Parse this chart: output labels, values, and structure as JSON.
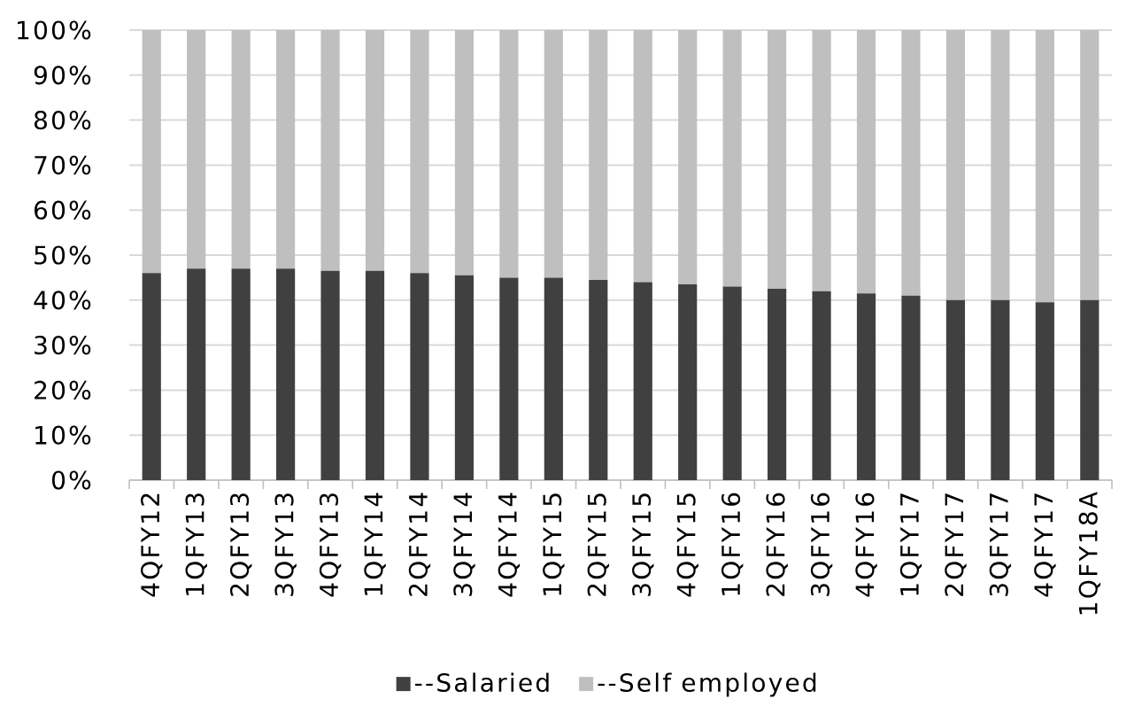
{
  "chart_data": {
    "type": "bar",
    "stacked": true,
    "categories": [
      "4QFY12",
      "1QFY13",
      "2QFY13",
      "3QFY13",
      "4QFY13",
      "1QFY14",
      "2QFY14",
      "3QFY14",
      "4QFY14",
      "1QFY15",
      "2QFY15",
      "3QFY15",
      "4QFY15",
      "1QFY16",
      "2QFY16",
      "3QFY16",
      "4QFY16",
      "1QFY17",
      "2QFY17",
      "3QFY17",
      "4QFY17",
      "1QFY18A"
    ],
    "series": [
      {
        "name": "--Salaried",
        "color": "#404040",
        "values": [
          46,
          47,
          47,
          47,
          46.5,
          46.5,
          46,
          45.5,
          45,
          45,
          44.5,
          44,
          43.5,
          43,
          42.5,
          42,
          41.5,
          41,
          40,
          40,
          39.5,
          40
        ]
      },
      {
        "name": "--Self employed",
        "color": "#bfbfbf",
        "values": [
          54,
          53,
          53,
          53,
          53.5,
          53.5,
          54,
          54.5,
          55,
          55,
          55.5,
          56,
          56.5,
          57,
          57.5,
          58,
          58.5,
          59,
          60,
          60,
          60.5,
          60
        ]
      }
    ],
    "ylim": [
      0,
      100
    ],
    "yticks": [
      {
        "value": 0,
        "label": "0%"
      },
      {
        "value": 10,
        "label": "10%"
      },
      {
        "value": 20,
        "label": "20%"
      },
      {
        "value": 30,
        "label": "30%"
      },
      {
        "value": 40,
        "label": "40%"
      },
      {
        "value": 50,
        "label": "50%"
      },
      {
        "value": 60,
        "label": "60%"
      },
      {
        "value": 70,
        "label": "70%"
      },
      {
        "value": 80,
        "label": "80%"
      },
      {
        "value": 90,
        "label": "90%"
      },
      {
        "value": 100,
        "label": "100%"
      }
    ],
    "grid": "y",
    "legend": "bottom"
  }
}
